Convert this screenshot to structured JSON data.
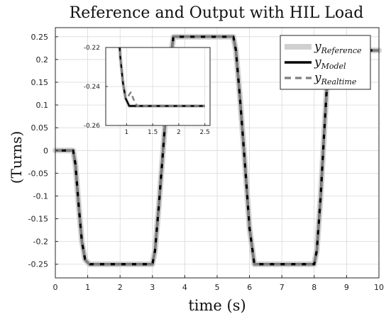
{
  "chart_data": {
    "type": "line",
    "title": "Reference and Output with HIL Load",
    "xlabel": "time (s)",
    "ylabel": "(Turns)",
    "xlim": [
      0,
      10
    ],
    "ylim": [
      -0.28,
      0.27
    ],
    "xticks": [
      "0",
      "1",
      "2",
      "3",
      "4",
      "5",
      "6",
      "7",
      "8",
      "9",
      "10"
    ],
    "yticks": [
      "0.25",
      "0.2",
      "0.15",
      "0.1",
      "0.05",
      "0",
      "-0.05",
      "-0.1",
      "-0.15",
      "-0.2",
      "-0.25"
    ],
    "grid": true,
    "legend_position": "top-right",
    "series": [
      {
        "name_main": "y",
        "name_sub": "Reference",
        "color": "#d0d0d0",
        "style": "solid-thick",
        "x": [
          0,
          0.55,
          0.62,
          0.72,
          0.82,
          0.92,
          1.05,
          3.0,
          3.08,
          3.2,
          3.35,
          3.5,
          3.65,
          5.5,
          5.58,
          5.7,
          5.85,
          6.0,
          6.15,
          8.0,
          8.08,
          8.2,
          8.3,
          8.4,
          8.46,
          10
        ],
        "y": [
          0,
          0,
          -0.03,
          -0.12,
          -0.2,
          -0.24,
          -0.25,
          -0.25,
          -0.22,
          -0.12,
          0.02,
          0.17,
          0.25,
          0.25,
          0.22,
          0.12,
          -0.02,
          -0.17,
          -0.25,
          -0.25,
          -0.22,
          -0.1,
          0.03,
          0.15,
          0.22,
          0.22
        ]
      },
      {
        "name_main": "y",
        "name_sub": "Model",
        "color": "#000000",
        "style": "solid",
        "x": [
          0,
          0.55,
          0.62,
          0.72,
          0.82,
          0.92,
          1.05,
          3.0,
          3.08,
          3.2,
          3.35,
          3.5,
          3.65,
          5.5,
          5.58,
          5.7,
          5.85,
          6.0,
          6.15,
          8.0,
          8.08,
          8.2,
          8.3,
          8.4,
          8.46,
          10
        ],
        "y": [
          0,
          0,
          -0.03,
          -0.12,
          -0.2,
          -0.24,
          -0.25,
          -0.25,
          -0.22,
          -0.12,
          0.02,
          0.17,
          0.25,
          0.25,
          0.22,
          0.12,
          -0.02,
          -0.17,
          -0.25,
          -0.25,
          -0.22,
          -0.1,
          0.03,
          0.15,
          0.22,
          0.22
        ]
      },
      {
        "name_main": "y",
        "name_sub": "Realtime",
        "color": "#7f7f7f",
        "style": "dashed",
        "x": [
          0,
          0.55,
          0.62,
          0.72,
          0.82,
          0.92,
          1.05,
          3.0,
          3.08,
          3.2,
          3.35,
          3.5,
          3.65,
          5.5,
          5.58,
          5.7,
          5.85,
          6.0,
          6.15,
          8.0,
          8.08,
          8.2,
          8.3,
          8.4,
          8.46,
          10
        ],
        "y": [
          0,
          0,
          -0.03,
          -0.12,
          -0.2,
          -0.24,
          -0.25,
          -0.25,
          -0.22,
          -0.12,
          0.02,
          0.17,
          0.25,
          0.25,
          0.22,
          0.12,
          -0.02,
          -0.17,
          -0.25,
          -0.25,
          -0.22,
          -0.1,
          0.03,
          0.15,
          0.22,
          0.22
        ]
      }
    ],
    "inset": {
      "xlim": [
        0.6,
        2.6
      ],
      "ylim": [
        -0.26,
        -0.22
      ],
      "xticks": [
        "1",
        "1.5",
        "2",
        "2.5"
      ],
      "yticks": [
        "-0.22",
        "-0.24",
        "-0.26"
      ],
      "grid": true,
      "series": [
        {
          "ref": "Reference",
          "x": [
            0.82,
            0.88,
            0.93,
            0.98,
            1.05,
            2.5
          ],
          "y": [
            -0.2,
            -0.225,
            -0.238,
            -0.246,
            -0.25,
            -0.25
          ]
        },
        {
          "ref": "Model",
          "x": [
            0.82,
            0.88,
            0.93,
            0.98,
            1.05,
            2.5
          ],
          "y": [
            -0.2,
            -0.225,
            -0.238,
            -0.246,
            -0.25,
            -0.25
          ]
        },
        {
          "ref": "Realtime",
          "x": [
            0.82,
            0.88,
            0.93,
            0.98,
            1.03,
            1.08,
            1.14,
            1.2,
            2.5
          ],
          "y": [
            -0.2,
            -0.225,
            -0.238,
            -0.246,
            -0.245,
            -0.243,
            -0.247,
            -0.25,
            -0.25
          ]
        }
      ]
    }
  }
}
